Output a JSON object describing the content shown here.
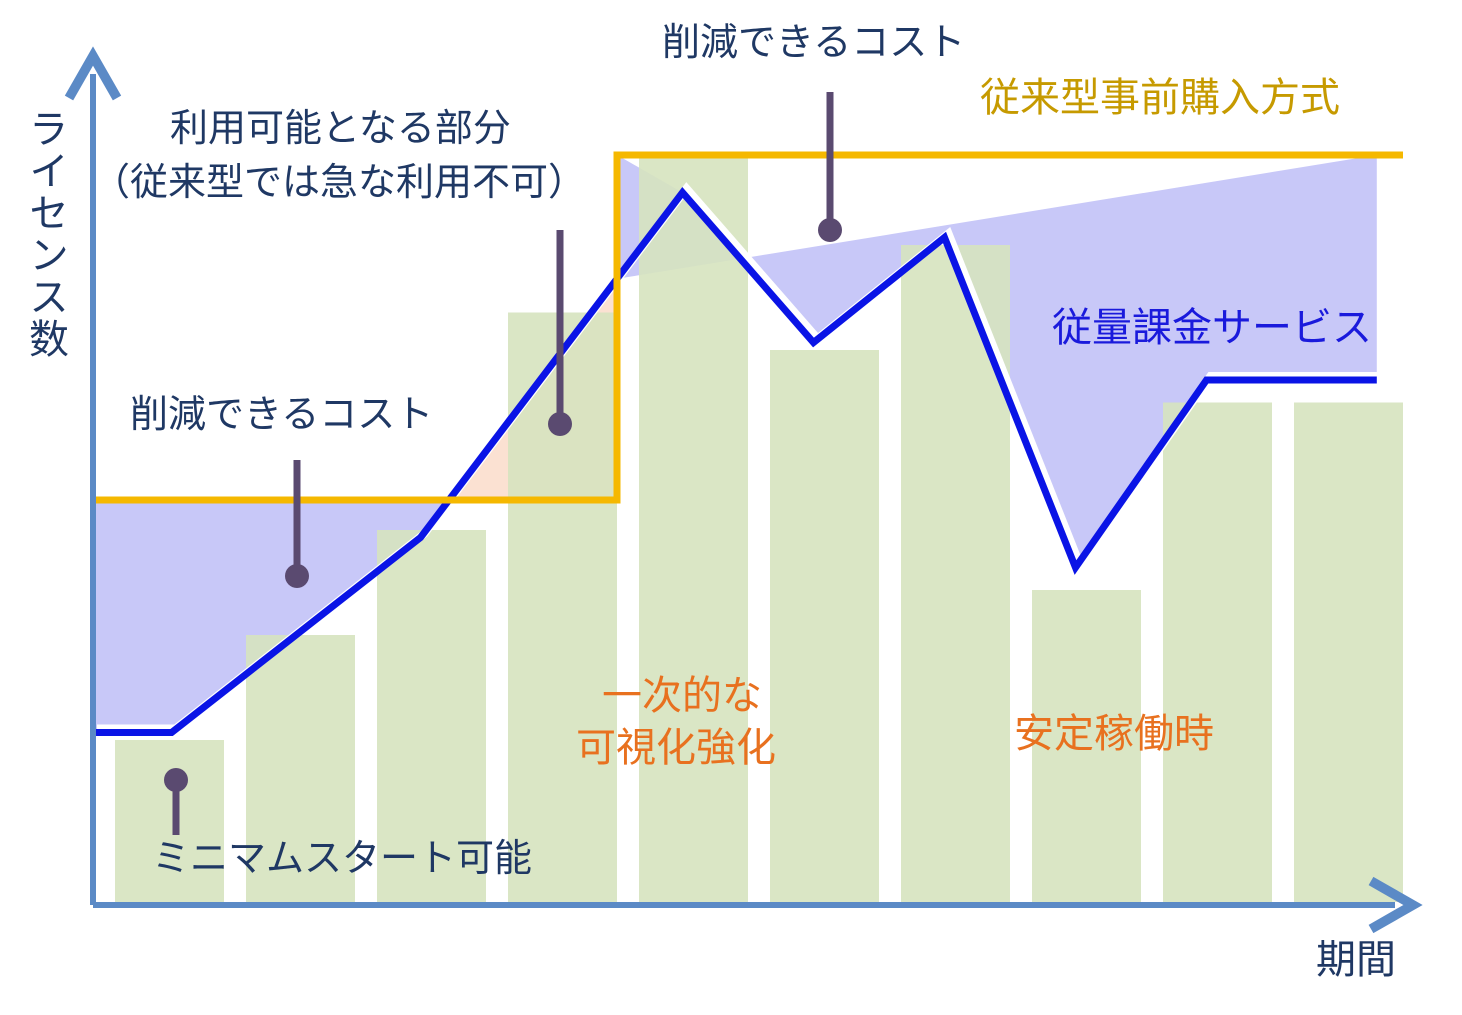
{
  "colors": {
    "axis": "#5b8ac6",
    "usage_line": "#0a14e6",
    "traditional_line": "#f5b800",
    "bar": "#d6e3bf",
    "saved_cost_area": "#c8c8f8",
    "unavailable_area": "#fbe1d2",
    "callout": "#5a4a70",
    "label_dark": "#1f3864",
    "label_orange": "#e8711f",
    "label_gold": "#c69a00",
    "label_blue": "#1a1adc"
  },
  "chart_data": {
    "type": "bar",
    "xlabel": "期間",
    "ylabel": "ライセンス数",
    "ylim": [
      0,
      100
    ],
    "categories": [
      "",
      "",
      "",
      "",
      "",
      "",
      "",
      "",
      "",
      ""
    ],
    "values": [
      22,
      36,
      50,
      79,
      100,
      74,
      88,
      42,
      67,
      67
    ],
    "series": [
      {
        "name": "従量課金サービス",
        "type": "line",
        "x": [
          0,
          0.6,
          2.5,
          4.5,
          5.5,
          6.5,
          7.5,
          8.5,
          9.8
        ],
        "values": [
          23,
          23,
          49,
          95,
          75,
          89,
          45,
          70,
          70
        ]
      },
      {
        "name": "従来型事前購入方式",
        "type": "step",
        "x": [
          0,
          4,
          4,
          10
        ],
        "values": [
          54,
          54,
          100,
          100
        ]
      }
    ],
    "annotations": {
      "saved_cost_left": "削減できるコスト",
      "saved_cost_top": "削減できるコスト",
      "available_part_1": "利用可能となる部分",
      "available_part_2": "（従来型では急な利用不可）",
      "minimum_start": "ミニマムスタート可能",
      "temp_1": "一次的な",
      "temp_2": "可視化強化",
      "stable": "安定稼働時"
    }
  }
}
